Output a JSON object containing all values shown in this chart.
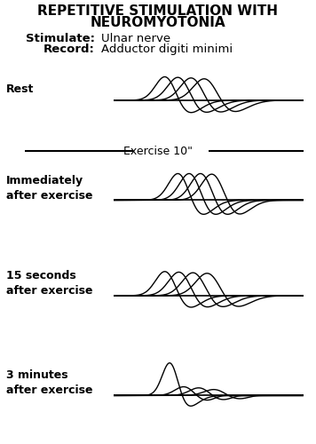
{
  "title_line1": "REPETITIVE STIMULATION WITH",
  "title_line2": "NEUROMYOTONIA",
  "stimulate_label": "Stimulate:",
  "stimulate_value": "Ulnar nerve",
  "record_label": "Record:",
  "record_value": "Adductor digiti minimi",
  "exercise_label": "Exercise 10\"",
  "bg_color": "#ffffff",
  "line_color": "#000000",
  "panel_labels": [
    "Rest",
    "Immediately\nafter exercise",
    "15 seconds\nafter exercise",
    "3 minutes\nafter exercise"
  ]
}
